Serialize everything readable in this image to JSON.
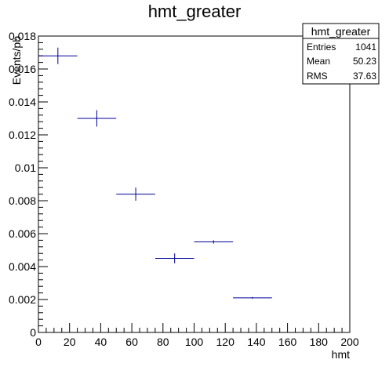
{
  "chart_data": {
    "type": "scatter",
    "style": "histogram-errorbars",
    "title": "hmt_greater",
    "xlabel": "hmt",
    "ylabel": "Events/pb",
    "xlim": [
      0,
      200
    ],
    "ylim": [
      0,
      0.018
    ],
    "x_ticks": [
      "0",
      "20",
      "40",
      "60",
      "80",
      "100",
      "120",
      "140",
      "160",
      "180",
      "200"
    ],
    "y_ticks": [
      "0",
      "0.002",
      "0.004",
      "0.006",
      "0.008",
      "0.01",
      "0.012",
      "0.014",
      "0.016",
      "0.018"
    ],
    "grid": false,
    "marker_color": "#000099",
    "bins": [
      {
        "x_low": 0,
        "x_high": 25,
        "y": 0.0168,
        "err": 0.0005
      },
      {
        "x_low": 25,
        "x_high": 50,
        "y": 0.013,
        "err": 0.0005
      },
      {
        "x_low": 50,
        "x_high": 75,
        "y": 0.0084,
        "err": 0.0004
      },
      {
        "x_low": 75,
        "x_high": 100,
        "y": 0.0045,
        "err": 0.0003
      },
      {
        "x_low": 100,
        "x_high": 125,
        "y": 0.0055,
        "err": 0.0001
      },
      {
        "x_low": 125,
        "x_high": 150,
        "y": 0.0021,
        "err": 5e-05
      }
    ],
    "stats_box": {
      "title": "hmt_greater",
      "placement": "top-right",
      "rows": [
        {
          "label": "Entries",
          "value": "1041"
        },
        {
          "label": "Mean",
          "value": "50.23"
        },
        {
          "label": "RMS",
          "value": "37.63"
        }
      ]
    }
  }
}
